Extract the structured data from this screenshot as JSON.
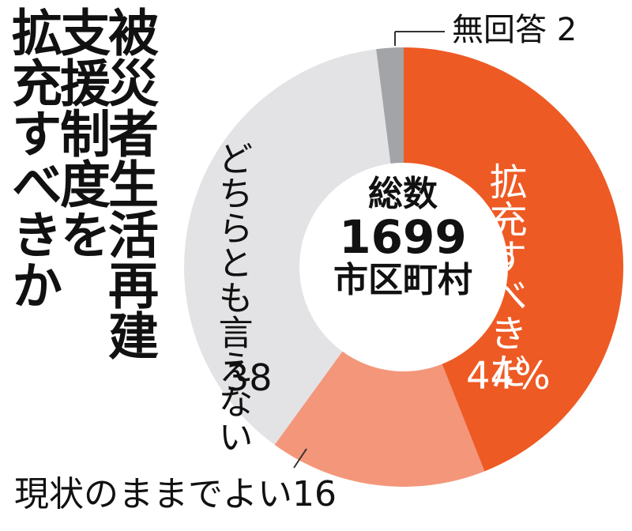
{
  "title": [
    "被災者生活再建",
    "支援制度を",
    "拡充すべきか"
  ],
  "center": {
    "title": "総数",
    "number": "1699",
    "unit": "市区町村"
  },
  "chart_data": {
    "type": "pie",
    "donut": true,
    "title": "被災者生活再建支援制度を拡充すべきか",
    "center_label": "総数 1699 市区町村",
    "unit": "%",
    "slices": [
      {
        "name": "拡充すべきだ",
        "value": 44,
        "value_label": "44%",
        "color": "#ee5a24"
      },
      {
        "name": "現状のままでよい",
        "value": 16,
        "value_label": "16",
        "color": "#f4967a"
      },
      {
        "name": "どちらとも言えない",
        "value": 38,
        "value_label": "38",
        "color": "#e3e3e5"
      },
      {
        "name": "無回答",
        "value": 2,
        "value_label": "2",
        "color": "#a2a4a7"
      }
    ],
    "start": "12 o'clock",
    "direction": "clockwise",
    "legend": "none"
  },
  "labels": {
    "expand_name": "拡充すべきだ",
    "expand_value": "44%",
    "keep": "現状のままでよい16",
    "both_name": "どちらとも言えない",
    "both_value": "38",
    "noanswer": "無回答 2"
  }
}
